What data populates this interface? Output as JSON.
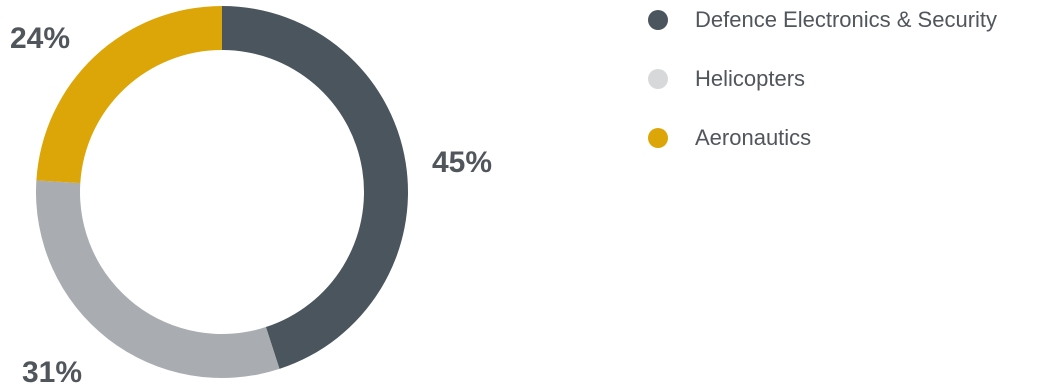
{
  "chart_data": {
    "type": "pie",
    "donut": true,
    "title": "",
    "categories": [
      "Defence Electronics & Security",
      "Helicopters",
      "Aeronautics"
    ],
    "values": [
      45,
      31,
      24
    ],
    "value_labels": [
      "45%",
      "31%",
      "24%"
    ],
    "colors": [
      "#4b555d",
      "#a9adb1",
      "#dca608"
    ],
    "legend_colors": [
      "#4b555d",
      "#d6d8da",
      "#dca608"
    ],
    "legend_position": "right",
    "start_angle_deg": 0,
    "direction": "clockwise"
  }
}
